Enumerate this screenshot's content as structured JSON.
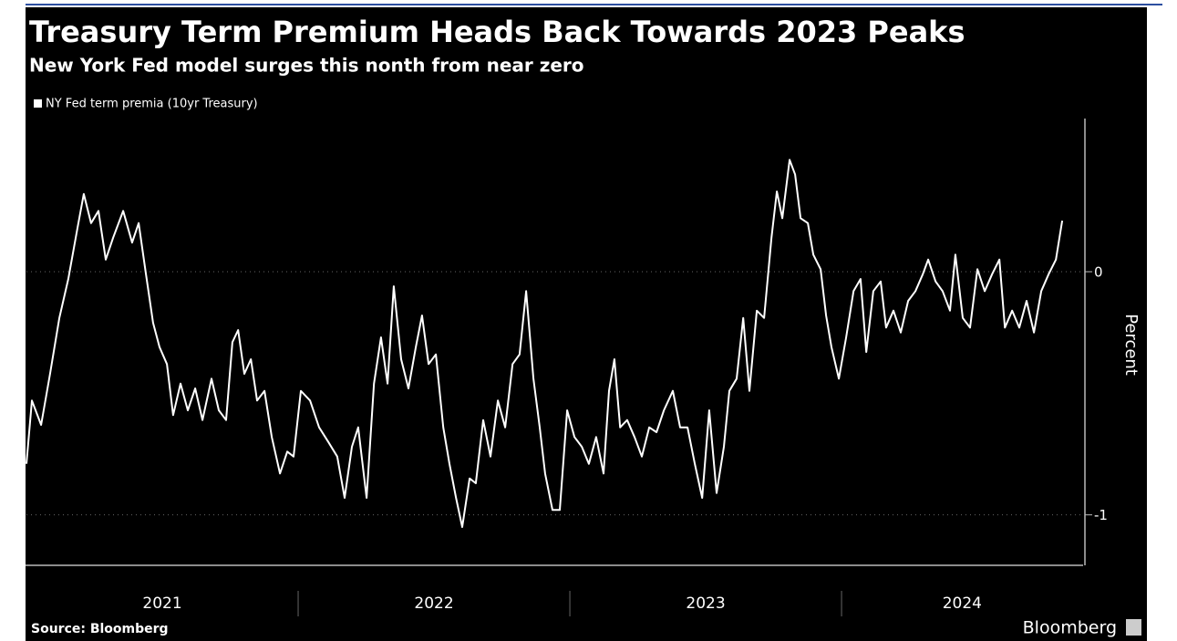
{
  "chart_data": {
    "type": "line",
    "title": "Treasury Term Premium Heads Back Towards 2023 Peaks",
    "subtitle": "New York Fed model surges this nonth from near zero",
    "y_label": "Percent",
    "source": "Source: Bloomberg",
    "brand": "Bloomberg",
    "xlim": [
      2021,
      2024.889
    ],
    "xticks": [
      {
        "value": 2021.5,
        "label": "2021"
      },
      {
        "value": 2022.5,
        "label": "2022"
      },
      {
        "value": 2023.5,
        "label": "2023"
      },
      {
        "value": 2024.444,
        "label": "2024"
      }
    ],
    "ylim": [
      -1.2,
      0.6
    ],
    "yticks": [
      -1,
      0
    ],
    "grid": true,
    "legend": "top-left",
    "series": [
      {
        "name": "NY Fed term premia (10yr Treasury)",
        "color": "#ffffff",
        "x": [
          2021.0,
          2021.02,
          2021.054,
          2021.087,
          2021.121,
          2021.154,
          2021.188,
          2021.211,
          2021.238,
          2021.265,
          2021.292,
          2021.319,
          2021.356,
          2021.389,
          2021.413,
          2021.44,
          2021.466,
          2021.49,
          2021.517,
          2021.54,
          2021.567,
          2021.594,
          2021.621,
          2021.648,
          2021.681,
          2021.708,
          2021.735,
          2021.758,
          2021.779,
          2021.802,
          2021.826,
          2021.849,
          2021.876,
          2021.903,
          2021.933,
          2021.96,
          2021.983,
          2022.01,
          2022.044,
          2022.077,
          2022.111,
          2022.144,
          2022.171,
          2022.198,
          2022.221,
          2022.252,
          2022.279,
          2022.305,
          2022.329,
          2022.352,
          2022.379,
          2022.406,
          2022.433,
          2022.456,
          2022.48,
          2022.507,
          2022.534,
          2022.557,
          2022.581,
          2022.604,
          2022.631,
          2022.654,
          2022.681,
          2022.708,
          2022.735,
          2022.762,
          2022.789,
          2022.815,
          2022.839,
          2022.866,
          2022.889,
          2022.909,
          2022.936,
          2022.963,
          2022.99,
          2023.017,
          2023.044,
          2023.07,
          2023.097,
          2023.124,
          2023.144,
          2023.164,
          2023.185,
          2023.211,
          2023.238,
          2023.265,
          2023.292,
          2023.319,
          2023.346,
          2023.379,
          2023.406,
          2023.433,
          2023.46,
          2023.487,
          2023.513,
          2023.54,
          2023.567,
          2023.587,
          2023.614,
          2023.638,
          2023.661,
          2023.688,
          2023.715,
          2023.742,
          2023.762,
          2023.782,
          2023.809,
          2023.829,
          2023.849,
          2023.876,
          2023.896,
          2023.923,
          2023.943,
          2023.963,
          2023.99,
          2024.017,
          2024.044,
          2024.07,
          2024.091,
          2024.117,
          2024.144,
          2024.164,
          2024.191,
          2024.218,
          2024.245,
          2024.272,
          2024.299,
          2024.319,
          2024.346,
          2024.372,
          2024.399,
          2024.419,
          2024.446,
          2024.473,
          2024.5,
          2024.527,
          2024.554,
          2024.581,
          2024.601,
          2024.628,
          2024.654,
          2024.681,
          2024.708,
          2024.735,
          2024.762,
          2024.789,
          2024.812
        ],
        "values": [
          -0.79,
          -0.53,
          -0.63,
          -0.42,
          -0.19,
          -0.03,
          0.18,
          0.32,
          0.2,
          0.25,
          0.05,
          0.14,
          0.25,
          0.12,
          0.2,
          -0.01,
          -0.21,
          -0.31,
          -0.38,
          -0.59,
          -0.46,
          -0.57,
          -0.48,
          -0.61,
          -0.44,
          -0.57,
          -0.61,
          -0.29,
          -0.24,
          -0.42,
          -0.36,
          -0.53,
          -0.49,
          -0.68,
          -0.83,
          -0.74,
          -0.76,
          -0.49,
          -0.53,
          -0.64,
          -0.7,
          -0.76,
          -0.93,
          -0.72,
          -0.64,
          -0.93,
          -0.46,
          -0.27,
          -0.46,
          -0.06,
          -0.36,
          -0.48,
          -0.31,
          -0.18,
          -0.38,
          -0.34,
          -0.64,
          -0.79,
          -0.93,
          -1.05,
          -0.85,
          -0.87,
          -0.61,
          -0.76,
          -0.53,
          -0.64,
          -0.38,
          -0.34,
          -0.08,
          -0.44,
          -0.64,
          -0.83,
          -0.98,
          -0.98,
          -0.57,
          -0.68,
          -0.72,
          -0.79,
          -0.68,
          -0.83,
          -0.49,
          -0.36,
          -0.64,
          -0.61,
          -0.68,
          -0.76,
          -0.64,
          -0.66,
          -0.57,
          -0.49,
          -0.64,
          -0.64,
          -0.79,
          -0.93,
          -0.57,
          -0.91,
          -0.72,
          -0.49,
          -0.44,
          -0.19,
          -0.49,
          -0.16,
          -0.19,
          0.14,
          0.33,
          0.22,
          0.46,
          0.4,
          0.22,
          0.2,
          0.07,
          0.01,
          -0.18,
          -0.31,
          -0.44,
          -0.27,
          -0.08,
          -0.03,
          -0.33,
          -0.08,
          -0.04,
          -0.23,
          -0.16,
          -0.25,
          -0.12,
          -0.08,
          -0.01,
          0.05,
          -0.04,
          -0.08,
          -0.16,
          0.07,
          -0.19,
          -0.23,
          0.01,
          -0.08,
          -0.01,
          0.05,
          -0.23,
          -0.16,
          -0.23,
          -0.12,
          -0.25,
          -0.08,
          -0.01,
          0.05,
          0.21
        ]
      }
    ]
  }
}
